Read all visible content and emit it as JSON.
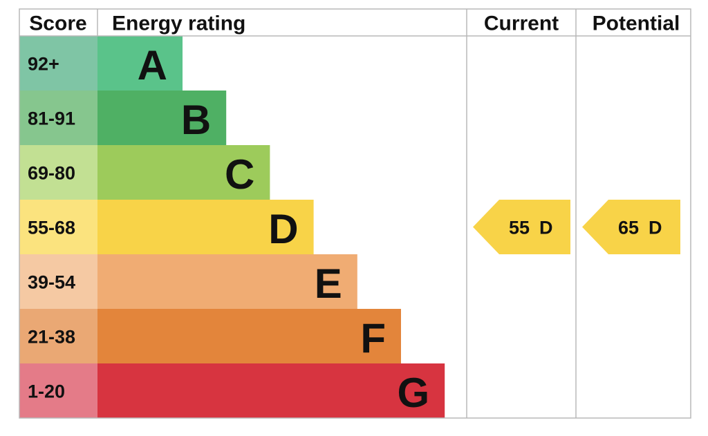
{
  "header": {
    "score": "Score",
    "energy_rating": "Energy rating",
    "current": "Current",
    "potential": "Potential"
  },
  "rows": [
    {
      "score": "92+",
      "rating": "A",
      "color": "#5ac38a",
      "light": "#7fc5a5"
    },
    {
      "score": "81-91",
      "rating": "B",
      "color": "#4fb064",
      "light": "#86c68e"
    },
    {
      "score": "69-80",
      "rating": "C",
      "color": "#9dcb5b",
      "light": "#c2e093"
    },
    {
      "score": "55-68",
      "rating": "D",
      "color": "#f8d348",
      "light": "#fbe37e"
    },
    {
      "score": "39-54",
      "rating": "E",
      "color": "#f0ac73",
      "light": "#f5c9a3"
    },
    {
      "score": "21-38",
      "rating": "F",
      "color": "#e3853b",
      "light": "#eaa874"
    },
    {
      "score": "1-20",
      "rating": "G",
      "color": "#d73440",
      "light": "#e47b88"
    }
  ],
  "current": {
    "score": 55,
    "rating": "D"
  },
  "potential": {
    "score": 65,
    "rating": "D"
  }
}
